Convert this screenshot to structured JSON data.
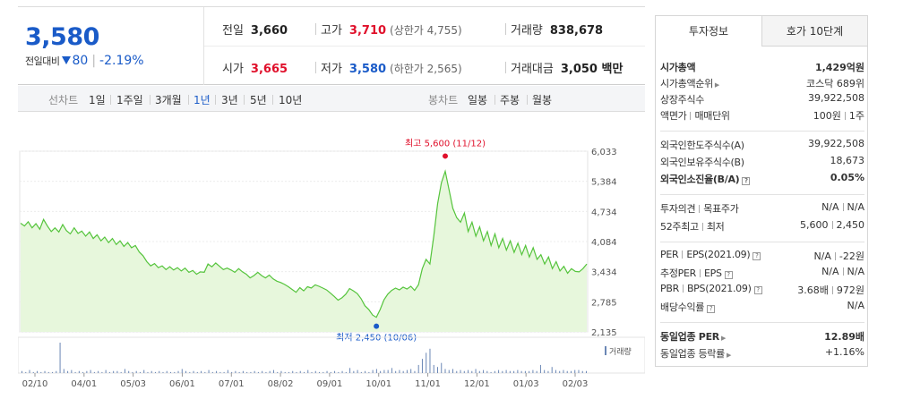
{
  "price": {
    "current": "3,580",
    "change_label": "전일대비",
    "change_value": "80",
    "change_pct": "-2.19%"
  },
  "stats": {
    "prev_label": "전일",
    "prev": "3,660",
    "high_label": "고가",
    "high": "3,710",
    "high_limit": "(상한가 4,755)",
    "volume_label": "거래량",
    "volume": "838,678",
    "open_label": "시가",
    "open": "3,665",
    "low_label": "저가",
    "low": "3,580",
    "low_limit": "(하한가 2,565)",
    "amount_label": "거래대금",
    "amount": "3,050 백만"
  },
  "toolbar": {
    "line_label": "선차트",
    "periods": [
      "1일",
      "1주일",
      "3개월",
      "1년",
      "3년",
      "5년",
      "10년"
    ],
    "selected": "1년",
    "candle_label": "봉차트",
    "candles": [
      "일봉",
      "주봉",
      "월봉"
    ]
  },
  "chart_data": {
    "type": "area",
    "y_ticks": [
      "6,033",
      "5,384",
      "4,734",
      "4,084",
      "3,434",
      "2,785",
      "2,135"
    ],
    "ylim": [
      2135,
      6033
    ],
    "x_ticks": [
      "02/10",
      "04/01",
      "05/03",
      "06/01",
      "07/01",
      "08/02",
      "09/01",
      "10/01",
      "11/01",
      "12/01",
      "01/03",
      "02/03"
    ],
    "high_annotation": "최고 5,600 (11/12)",
    "low_annotation": "최저 2,450 (10/06)",
    "volume_label": "거래량",
    "price_series": [
      4480,
      4420,
      4510,
      4380,
      4470,
      4350,
      4560,
      4420,
      4300,
      4380,
      4290,
      4450,
      4320,
      4250,
      4380,
      4260,
      4310,
      4200,
      4290,
      4150,
      4230,
      4100,
      4180,
      4060,
      4150,
      4020,
      4100,
      3980,
      4060,
      3950,
      4000,
      3860,
      3780,
      3650,
      3560,
      3610,
      3520,
      3560,
      3480,
      3540,
      3470,
      3520,
      3450,
      3510,
      3420,
      3460,
      3380,
      3430,
      3420,
      3600,
      3540,
      3620,
      3550,
      3480,
      3510,
      3470,
      3420,
      3500,
      3430,
      3380,
      3300,
      3350,
      3420,
      3350,
      3300,
      3360,
      3280,
      3230,
      3200,
      3160,
      3110,
      3050,
      2990,
      3090,
      3020,
      3110,
      3080,
      3150,
      3120,
      3080,
      3040,
      2970,
      2900,
      2820,
      2870,
      2950,
      3070,
      3020,
      2960,
      2850,
      2700,
      2620,
      2500,
      2450,
      2620,
      2830,
      2950,
      3030,
      3080,
      3040,
      3100,
      3060,
      3120,
      3030,
      3150,
      3500,
      3700,
      3600,
      4200,
      4900,
      5350,
      5600,
      5200,
      4800,
      4600,
      4500,
      4700,
      4300,
      4500,
      4200,
      4400,
      4100,
      4300,
      4000,
      4250,
      3950,
      4150,
      3900,
      4100,
      3850,
      4050,
      3800,
      4000,
      3750,
      3950,
      3700,
      3800,
      3600,
      3750,
      3500,
      3650,
      3450,
      3550,
      3400,
      3500,
      3440,
      3430,
      3500,
      3600
    ],
    "volume_series": [
      2,
      1,
      3,
      1,
      2,
      1,
      2,
      1,
      1,
      2,
      30,
      4,
      2,
      3,
      1,
      2,
      1,
      2,
      3,
      1,
      2,
      1,
      3,
      1,
      2,
      2,
      1,
      4,
      2,
      1,
      2,
      1,
      3,
      1,
      2,
      1,
      2,
      1,
      2,
      1,
      1,
      2,
      4,
      2,
      1,
      2,
      1,
      2,
      1,
      3,
      1,
      2,
      1,
      1,
      3,
      1,
      2,
      1,
      2,
      1,
      1,
      2,
      1,
      2,
      1,
      2,
      3,
      1,
      2,
      1,
      1,
      2,
      1,
      2,
      1,
      3,
      1,
      2,
      1,
      1,
      2,
      1,
      2,
      1,
      2,
      1,
      5,
      2,
      3,
      1,
      2,
      1,
      3,
      4,
      2,
      3,
      3,
      5,
      2,
      3,
      2,
      3,
      4,
      2,
      8,
      14,
      20,
      24,
      8,
      6,
      10,
      4,
      3,
      4,
      2,
      3,
      2,
      3,
      2,
      4,
      2,
      3,
      2,
      1,
      2,
      3,
      2,
      3,
      2,
      2,
      3,
      2,
      2,
      2,
      3,
      2,
      8,
      3,
      2,
      6,
      3,
      2,
      3,
      2,
      2,
      3,
      3,
      2,
      2
    ]
  },
  "info": {
    "tab_active": "투자정보",
    "tab_other": "호가 10단계",
    "market_cap_label": "시가총액",
    "market_cap": "1,429억원",
    "rank_label": "시가총액순위",
    "rank": "코스닥 689위",
    "shares_label": "상장주식수",
    "shares": "39,922,508",
    "par_label": "액면가",
    "unit_label": "매매단위",
    "par": "100원",
    "unit": "1주",
    "foreign_limit_label": "외국인한도주식수(A)",
    "foreign_limit": "39,922,508",
    "foreign_hold_label": "외국인보유주식수(B)",
    "foreign_hold": "18,673",
    "foreign_ratio_label": "외국인소진율(B/A)",
    "foreign_ratio": "0.05%",
    "opinion_label": "투자의견",
    "target_label": "목표주가",
    "opinion": "N/A",
    "target": "N/A",
    "w52_high_label": "52주최고",
    "w52_low_label": "최저",
    "w52_high": "5,600",
    "w52_low": "2,450",
    "per_label": "PER",
    "eps_label": "EPS",
    "eps_date": "(2021.09)",
    "per": "N/A",
    "eps": "-22원",
    "est_per_label": "추정PER",
    "est_eps_label": "EPS",
    "est_per": "N/A",
    "est_eps": "N/A",
    "pbr_label": "PBR",
    "bps_label": "BPS",
    "bps_date": "(2021.09)",
    "pbr": "3.68배",
    "bps": "972원",
    "div_label": "배당수익률",
    "div": "N/A",
    "ind_per_label": "동일업종 PER",
    "ind_per": "12.89배",
    "ind_chg_label": "동일업종 등락률",
    "ind_chg": "+1.16%"
  }
}
